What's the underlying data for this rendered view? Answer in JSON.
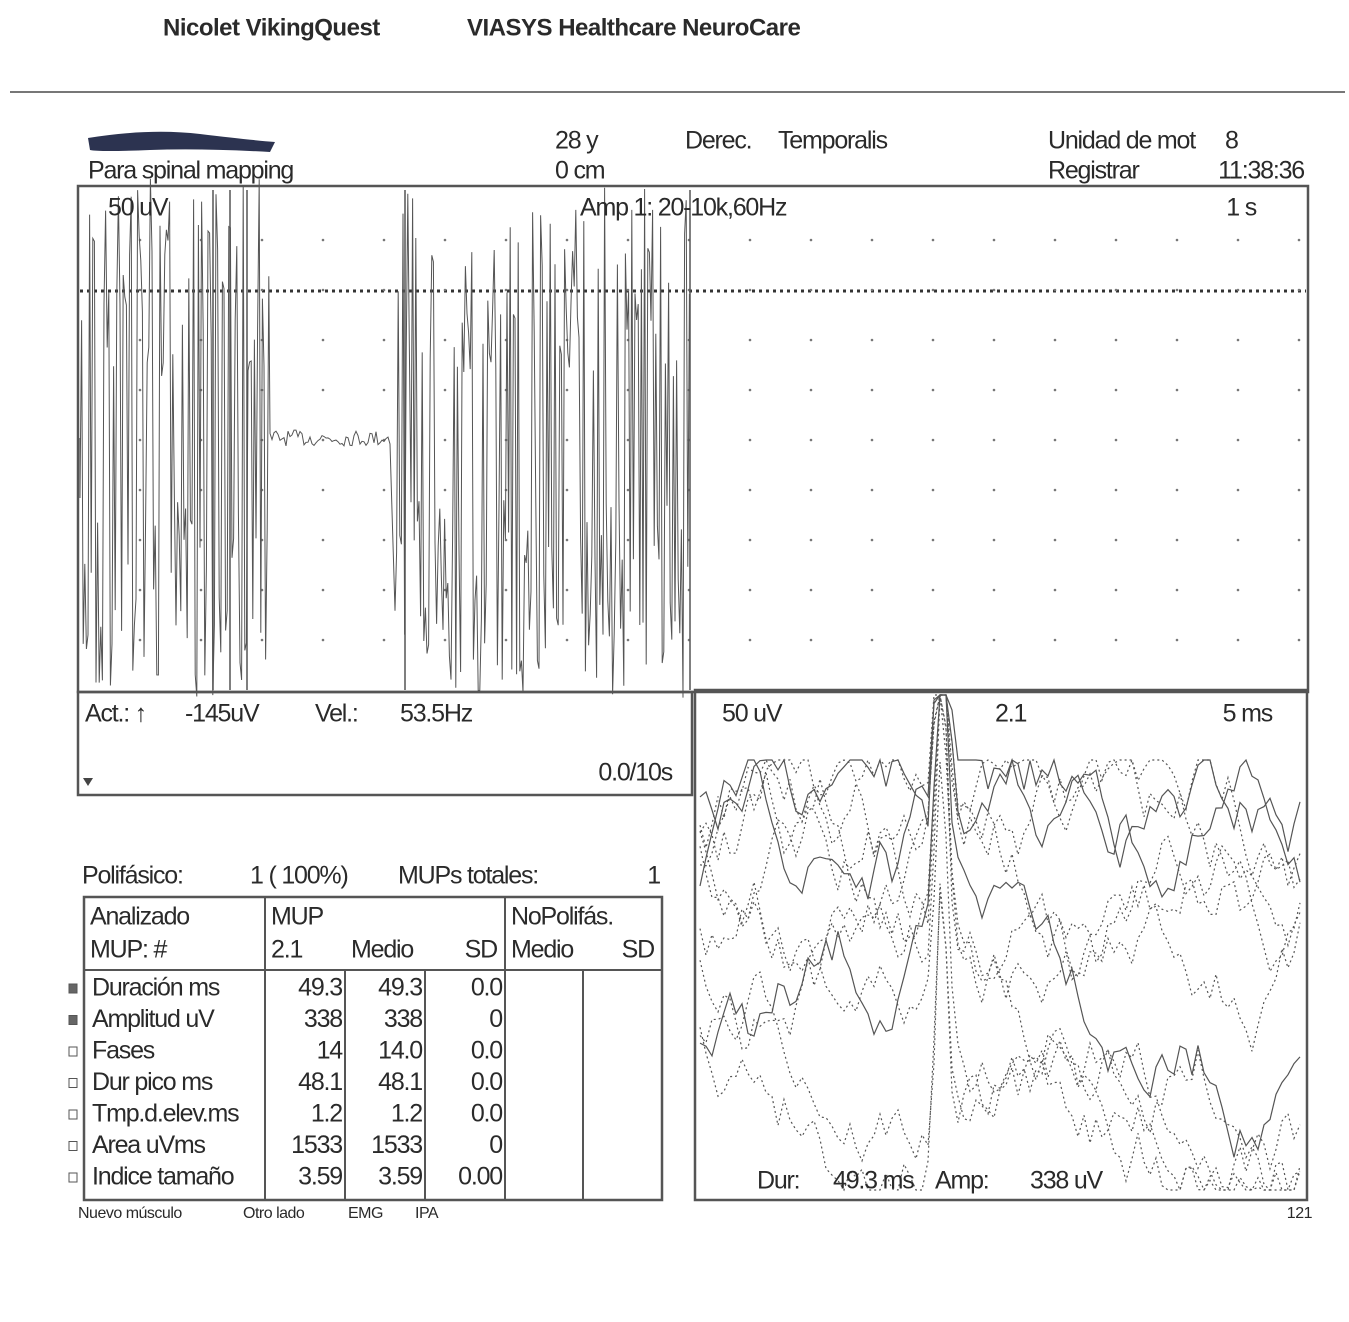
{
  "header": {
    "brand": "Nicolet VikingQuest",
    "company": "VIASYS Healthcare NeuroCare"
  },
  "patient": {
    "study": "Para spinal mapping",
    "age": "28 y",
    "distance": "0 cm",
    "side": "Derec.",
    "muscle": "Temporalis",
    "unit_label": "Unidad de mot",
    "unit_number": "8",
    "mode": "Registrar",
    "time": "11:38:36"
  },
  "trace": {
    "sensitivity": "50 uV",
    "amplifier": "Amp 1: 20-10k,60Hz",
    "sweep": "1 s"
  },
  "status": {
    "act_label": "Act.: ↑",
    "act_value": "-145uV",
    "vel_label": "Vel.:",
    "vel_value": "53.5Hz",
    "progress": "0.0/10s"
  },
  "mup_panel": {
    "sensitivity": "50 uV",
    "mup_id": "2.1",
    "sweep": "5 ms",
    "dur_label": "Dur:",
    "dur_value": "49.3 ms",
    "amp_label": "Amp:",
    "amp_value": "338 uV"
  },
  "summary": {
    "polyphasic_label": "Polifásico:",
    "polyphasic_value": "1 ( 100%)",
    "total_label": "MUPs totales:",
    "total_value": "1"
  },
  "table": {
    "header": [
      [
        "Analizado",
        "MUP: #"
      ],
      [
        "MUP",
        "2.1"
      ],
      [
        "",
        "Medio"
      ],
      [
        "",
        "SD"
      ],
      [
        "NoPolifás.",
        "Medio"
      ],
      [
        "",
        "SD"
      ]
    ],
    "rows": [
      [
        "Duración ms",
        "49.3",
        "49.3",
        "0.0"
      ],
      [
        "Amplitud uV",
        "338",
        "338",
        "0"
      ],
      [
        "Fases",
        "14",
        "14.0",
        "0.0"
      ],
      [
        "Dur pico ms",
        "48.1",
        "48.1",
        "0.0"
      ],
      [
        "Tmp.d.elev.ms",
        "1.2",
        "1.2",
        "0.0"
      ],
      [
        "Area uVms",
        "1533",
        "1533",
        "0"
      ],
      [
        "Indice tamaño",
        "3.59",
        "3.59",
        "0.00"
      ]
    ]
  },
  "footer": {
    "buttons": [
      "Nuevo músculo",
      "Otro lado",
      "EMG",
      "IPA"
    ],
    "page": "121"
  }
}
